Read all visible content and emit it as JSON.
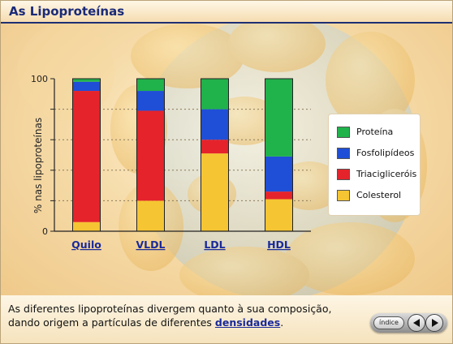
{
  "header": {
    "title": "As Lipoproteínas"
  },
  "chart_data": {
    "type": "bar",
    "stacked": true,
    "ylabel": "% nas lipoproteínas",
    "ylim": [
      0,
      100
    ],
    "yticks": [
      0,
      100
    ],
    "categories": [
      "Quilo",
      "VLDL",
      "LDL",
      "HDL"
    ],
    "series": [
      {
        "name": "Colesterol",
        "color": "#f5c533",
        "values": [
          6,
          20,
          51,
          21
        ]
      },
      {
        "name": "Triaciglicerois",
        "color": "#e5232b",
        "values": [
          86,
          59,
          9,
          5
        ]
      },
      {
        "name": "Fosfolipídeos",
        "color": "#1f4fd6",
        "values": [
          6,
          13,
          20,
          23
        ]
      },
      {
        "name": "Proteína",
        "color": "#20b24b",
        "values": [
          2,
          8,
          20,
          51
        ]
      }
    ]
  },
  "legend": {
    "items": [
      {
        "label": "Proteína",
        "color": "#20b24b"
      },
      {
        "label": "Fosfolipídeos",
        "color": "#1f4fd6"
      },
      {
        "label": "Triacigliceróis",
        "color": "#e5232b"
      },
      {
        "label": "Colesterol",
        "color": "#f5c533"
      }
    ]
  },
  "caption": {
    "text": "As diferentes lipoproteínas divergem quanto à sua composição, dando origem a partículas de diferentes ",
    "link": "densidades",
    "end": "."
  },
  "nav": {
    "index_label": "índice",
    "prev_icon": "prev-arrow-icon",
    "next_icon": "next-arrow-icon"
  }
}
